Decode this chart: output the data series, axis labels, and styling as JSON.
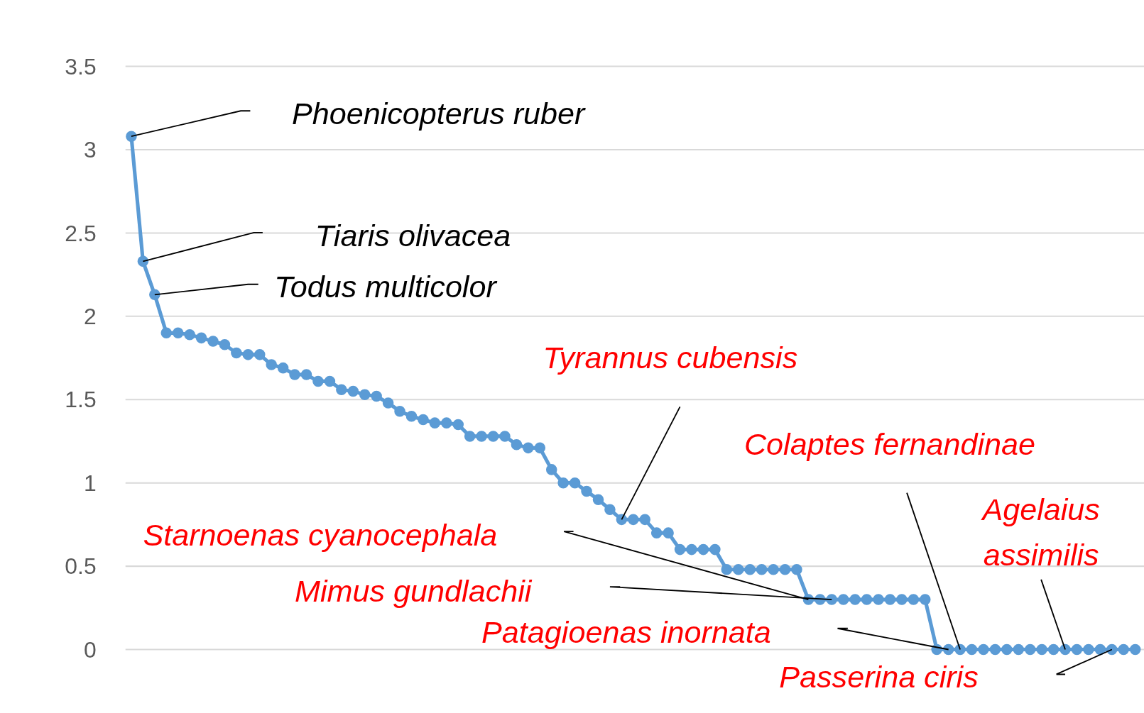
{
  "chart_data": {
    "type": "line",
    "categories": [
      null,
      null,
      null,
      null,
      null,
      null,
      null,
      null,
      null,
      null,
      null,
      null,
      null,
      null,
      null,
      null,
      null,
      null,
      null,
      null,
      null,
      null,
      null,
      null,
      null,
      null,
      null,
      null,
      null,
      null,
      null,
      null,
      null,
      null,
      null,
      null,
      null,
      null,
      null,
      null,
      null,
      null,
      null,
      null,
      null,
      null,
      null,
      null,
      null,
      null,
      null,
      null,
      null,
      null,
      null,
      null,
      null,
      null,
      null,
      null,
      null,
      null,
      null,
      null,
      null,
      null,
      null,
      null,
      null,
      null,
      null,
      null,
      null,
      null,
      null,
      null,
      null,
      null,
      null,
      null,
      null,
      null,
      null,
      null,
      null,
      null,
      null
    ],
    "series": [
      {
        "color": "#5b9bd5",
        "values": [
          3.08,
          2.33,
          2.13,
          1.9,
          1.9,
          1.89,
          1.87,
          1.85,
          1.83,
          1.78,
          1.77,
          1.77,
          1.71,
          1.69,
          1.65,
          1.65,
          1.61,
          1.61,
          1.56,
          1.55,
          1.53,
          1.52,
          1.48,
          1.43,
          1.4,
          1.38,
          1.36,
          1.36,
          1.35,
          1.28,
          1.28,
          1.28,
          1.28,
          1.23,
          1.21,
          1.21,
          1.08,
          1.0,
          1.0,
          0.95,
          0.9,
          0.84,
          0.78,
          0.78,
          0.78,
          0.7,
          0.7,
          0.6,
          0.6,
          0.6,
          0.6,
          0.48,
          0.48,
          0.48,
          0.48,
          0.48,
          0.48,
          0.48,
          0.3,
          0.3,
          0.3,
          0.3,
          0.3,
          0.3,
          0.3,
          0.3,
          0.3,
          0.3,
          0.3,
          0,
          0,
          0,
          0,
          0,
          0,
          0,
          0,
          0,
          0,
          0,
          0,
          0,
          0,
          0,
          0,
          0,
          0
        ]
      }
    ],
    "ylim": [
      0,
      3.5
    ],
    "yticks": [
      0,
      0.5,
      1,
      1.5,
      2,
      2.5,
      3,
      3.5
    ],
    "grid": "y",
    "marker": "circle",
    "tick_labels": "y",
    "annotations": [
      "Phoenicopterus ruber",
      "Tiaris olivacea",
      "Todus multicolor",
      "Tyrannus cubensis",
      "Colaptes fernandinae",
      "Agelaius assimilis",
      "Starnoenas cyanocephala",
      "Mimus gundlachii",
      "Patagioenas inornata",
      "Passerina ciris"
    ]
  }
}
